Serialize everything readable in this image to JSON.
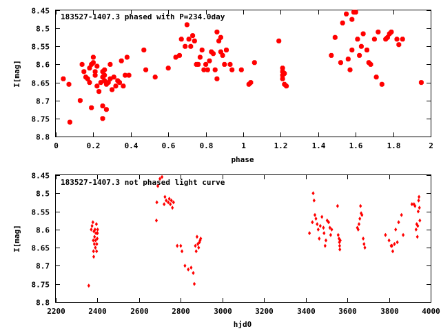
{
  "chart_data": [
    {
      "type": "scatter",
      "title": "183527-1407.3 phased with P=234.0day",
      "xlabel": "phase",
      "ylabel": "I[mag]",
      "xlim": [
        0,
        2
      ],
      "ylim": [
        8.45,
        8.8
      ],
      "y_inverted": true,
      "grid": false,
      "marker_color": "#ff0000",
      "x_ticks": [
        0,
        0.2,
        0.4,
        0.6,
        0.8,
        1,
        1.2,
        1.4,
        1.6,
        1.8,
        2
      ],
      "y_ticks": [
        8.45,
        8.5,
        8.55,
        8.6,
        8.65,
        8.7,
        8.75,
        8.8
      ],
      "x_tick_labels": [
        "0",
        "0.2",
        "0.4",
        "0.6",
        "0.8",
        "1",
        "1.2",
        "1.4",
        "1.6",
        "1.8",
        "2"
      ],
      "y_tick_labels": [
        "8.45",
        "8.5",
        "8.55",
        "8.6",
        "8.65",
        "8.7",
        "8.75",
        "8.8"
      ],
      "points": [
        [
          0.04,
          8.64
        ],
        [
          0.07,
          8.655
        ],
        [
          0.075,
          8.76
        ],
        [
          0.13,
          8.7
        ],
        [
          0.14,
          8.6
        ],
        [
          0.15,
          8.62
        ],
        [
          0.16,
          8.635
        ],
        [
          0.17,
          8.64
        ],
        [
          0.18,
          8.65
        ],
        [
          0.18,
          8.61
        ],
        [
          0.19,
          8.6
        ],
        [
          0.19,
          8.72
        ],
        [
          0.2,
          8.595
        ],
        [
          0.2,
          8.58
        ],
        [
          0.21,
          8.62
        ],
        [
          0.21,
          8.63
        ],
        [
          0.22,
          8.66
        ],
        [
          0.22,
          8.605
        ],
        [
          0.23,
          8.675
        ],
        [
          0.24,
          8.65
        ],
        [
          0.25,
          8.62
        ],
        [
          0.25,
          8.635
        ],
        [
          0.25,
          8.715
        ],
        [
          0.25,
          8.75
        ],
        [
          0.26,
          8.615
        ],
        [
          0.26,
          8.63
        ],
        [
          0.26,
          8.645
        ],
        [
          0.27,
          8.655
        ],
        [
          0.27,
          8.725
        ],
        [
          0.28,
          8.65
        ],
        [
          0.29,
          8.6
        ],
        [
          0.29,
          8.64
        ],
        [
          0.3,
          8.67
        ],
        [
          0.31,
          8.635
        ],
        [
          0.32,
          8.66
        ],
        [
          0.33,
          8.645
        ],
        [
          0.34,
          8.65
        ],
        [
          0.35,
          8.59
        ],
        [
          0.36,
          8.66
        ],
        [
          0.37,
          8.63
        ],
        [
          0.38,
          8.58
        ],
        [
          0.39,
          8.63
        ],
        [
          0.47,
          8.56
        ],
        [
          0.48,
          8.615
        ],
        [
          0.53,
          8.635
        ],
        [
          0.6,
          8.61
        ],
        [
          0.64,
          8.58
        ],
        [
          0.66,
          8.575
        ],
        [
          0.67,
          8.53
        ],
        [
          0.69,
          8.55
        ],
        [
          0.7,
          8.49
        ],
        [
          0.71,
          8.53
        ],
        [
          0.72,
          8.55
        ],
        [
          0.73,
          8.52
        ],
        [
          0.74,
          8.535
        ],
        [
          0.75,
          8.6
        ],
        [
          0.76,
          8.6
        ],
        [
          0.77,
          8.58
        ],
        [
          0.78,
          8.56
        ],
        [
          0.79,
          8.615
        ],
        [
          0.8,
          8.6
        ],
        [
          0.81,
          8.615
        ],
        [
          0.82,
          8.59
        ],
        [
          0.83,
          8.565
        ],
        [
          0.84,
          8.57
        ],
        [
          0.85,
          8.615
        ],
        [
          0.86,
          8.51
        ],
        [
          0.86,
          8.64
        ],
        [
          0.87,
          8.535
        ],
        [
          0.88,
          8.525
        ],
        [
          0.88,
          8.565
        ],
        [
          0.89,
          8.575
        ],
        [
          0.9,
          8.6
        ],
        [
          0.91,
          8.56
        ],
        [
          0.93,
          8.6
        ],
        [
          0.94,
          8.615
        ],
        [
          0.99,
          8.615
        ],
        [
          1.03,
          8.655
        ],
        [
          1.04,
          8.65
        ],
        [
          1.06,
          8.595
        ],
        [
          1.19,
          8.535
        ],
        [
          1.21,
          8.61
        ],
        [
          1.21,
          8.62
        ],
        [
          1.21,
          8.63
        ],
        [
          1.21,
          8.64
        ],
        [
          1.22,
          8.625
        ],
        [
          1.22,
          8.655
        ],
        [
          1.23,
          8.66
        ],
        [
          1.47,
          8.575
        ],
        [
          1.49,
          8.525
        ],
        [
          1.52,
          8.595
        ],
        [
          1.53,
          8.485
        ],
        [
          1.55,
          8.46
        ],
        [
          1.56,
          8.585
        ],
        [
          1.57,
          8.615
        ],
        [
          1.58,
          8.56
        ],
        [
          1.58,
          8.475
        ],
        [
          1.59,
          8.455
        ],
        [
          1.6,
          8.455
        ],
        [
          1.61,
          8.53
        ],
        [
          1.62,
          8.575
        ],
        [
          1.63,
          8.55
        ],
        [
          1.64,
          8.515
        ],
        [
          1.66,
          8.56
        ],
        [
          1.67,
          8.595
        ],
        [
          1.68,
          8.6
        ],
        [
          1.7,
          8.53
        ],
        [
          1.71,
          8.635
        ],
        [
          1.72,
          8.51
        ],
        [
          1.74,
          8.655
        ],
        [
          1.76,
          8.53
        ],
        [
          1.77,
          8.525
        ],
        [
          1.78,
          8.515
        ],
        [
          1.79,
          8.51
        ],
        [
          1.82,
          8.53
        ],
        [
          1.83,
          8.545
        ],
        [
          1.85,
          8.53
        ],
        [
          1.95,
          8.65
        ]
      ]
    },
    {
      "type": "scatter",
      "title": "183527-1407.3 not phased light curve",
      "xlabel": "hjd0",
      "ylabel": "I[mag]",
      "xlim": [
        2200,
        4000
      ],
      "ylim": [
        8.45,
        8.8
      ],
      "y_inverted": true,
      "grid": false,
      "marker_color": "#ff0000",
      "x_ticks": [
        2200,
        2400,
        2600,
        2800,
        3000,
        3200,
        3400,
        3600,
        3800,
        4000
      ],
      "y_ticks": [
        8.45,
        8.5,
        8.55,
        8.6,
        8.65,
        8.7,
        8.75,
        8.8
      ],
      "x_tick_labels": [
        "2200",
        "2400",
        "2600",
        "2800",
        "3000",
        "3200",
        "3400",
        "3600",
        "3800",
        "4000"
      ],
      "y_tick_labels": [
        "8.45",
        "8.5",
        "8.55",
        "8.6",
        "8.65",
        "8.7",
        "8.75",
        "8.8"
      ],
      "points": [
        [
          2358,
          8.755
        ],
        [
          2370,
          8.6
        ],
        [
          2374,
          8.59
        ],
        [
          2378,
          8.58
        ],
        [
          2380,
          8.63
        ],
        [
          2381,
          8.66
        ],
        [
          2382,
          8.675
        ],
        [
          2383,
          8.605
        ],
        [
          2385,
          8.64
        ],
        [
          2386,
          8.62
        ],
        [
          2388,
          8.6
        ],
        [
          2390,
          8.65
        ],
        [
          2391,
          8.63
        ],
        [
          2393,
          8.61
        ],
        [
          2395,
          8.585
        ],
        [
          2396,
          8.66
        ],
        [
          2397,
          8.64
        ],
        [
          2399,
          8.625
        ],
        [
          2400,
          8.61
        ],
        [
          2401,
          8.6
        ],
        [
          2683,
          8.575
        ],
        [
          2685,
          8.525
        ],
        [
          2690,
          8.48
        ],
        [
          2700,
          8.46
        ],
        [
          2710,
          8.455
        ],
        [
          2720,
          8.53
        ],
        [
          2724,
          8.51
        ],
        [
          2730,
          8.52
        ],
        [
          2740,
          8.525
        ],
        [
          2745,
          8.515
        ],
        [
          2750,
          8.53
        ],
        [
          2755,
          8.52
        ],
        [
          2760,
          8.54
        ],
        [
          2765,
          8.525
        ],
        [
          2783,
          8.645
        ],
        [
          2800,
          8.645
        ],
        [
          2806,
          8.66
        ],
        [
          2820,
          8.7
        ],
        [
          2836,
          8.71
        ],
        [
          2850,
          8.705
        ],
        [
          2860,
          8.72
        ],
        [
          2865,
          8.75
        ],
        [
          2870,
          8.645
        ],
        [
          2874,
          8.66
        ],
        [
          2878,
          8.62
        ],
        [
          2882,
          8.64
        ],
        [
          2886,
          8.65
        ],
        [
          2890,
          8.635
        ],
        [
          2893,
          8.63
        ],
        [
          2896,
          8.625
        ],
        [
          3418,
          8.61
        ],
        [
          3432,
          8.58
        ],
        [
          3436,
          8.5
        ],
        [
          3440,
          8.52
        ],
        [
          3444,
          8.56
        ],
        [
          3449,
          8.57
        ],
        [
          3455,
          8.585
        ],
        [
          3460,
          8.6
        ],
        [
          3465,
          8.625
        ],
        [
          3470,
          8.59
        ],
        [
          3478,
          8.565
        ],
        [
          3485,
          8.595
        ],
        [
          3488,
          8.61
        ],
        [
          3493,
          8.645
        ],
        [
          3497,
          8.63
        ],
        [
          3503,
          8.575
        ],
        [
          3510,
          8.58
        ],
        [
          3516,
          8.595
        ],
        [
          3520,
          8.615
        ],
        [
          3525,
          8.6
        ],
        [
          3553,
          8.535
        ],
        [
          3556,
          8.615
        ],
        [
          3560,
          8.625
        ],
        [
          3562,
          8.635
        ],
        [
          3563,
          8.645
        ],
        [
          3564,
          8.655
        ],
        [
          3566,
          8.63
        ],
        [
          3648,
          8.595
        ],
        [
          3652,
          8.6
        ],
        [
          3656,
          8.585
        ],
        [
          3660,
          8.57
        ],
        [
          3663,
          8.535
        ],
        [
          3666,
          8.555
        ],
        [
          3670,
          8.56
        ],
        [
          3676,
          8.625
        ],
        [
          3680,
          8.64
        ],
        [
          3684,
          8.65
        ],
        [
          3783,
          8.615
        ],
        [
          3800,
          8.63
        ],
        [
          3810,
          8.645
        ],
        [
          3814,
          8.645
        ],
        [
          3818,
          8.66
        ],
        [
          3826,
          8.64
        ],
        [
          3832,
          8.6
        ],
        [
          3840,
          8.635
        ],
        [
          3846,
          8.58
        ],
        [
          3860,
          8.56
        ],
        [
          3868,
          8.615
        ],
        [
          3910,
          8.53
        ],
        [
          3920,
          8.53
        ],
        [
          3925,
          8.535
        ],
        [
          3930,
          8.6
        ],
        [
          3933,
          8.585
        ],
        [
          3936,
          8.62
        ],
        [
          3938,
          8.59
        ],
        [
          3940,
          8.55
        ],
        [
          3942,
          8.52
        ],
        [
          3944,
          8.51
        ],
        [
          3946,
          8.54
        ],
        [
          3948,
          8.575
        ]
      ]
    }
  ]
}
